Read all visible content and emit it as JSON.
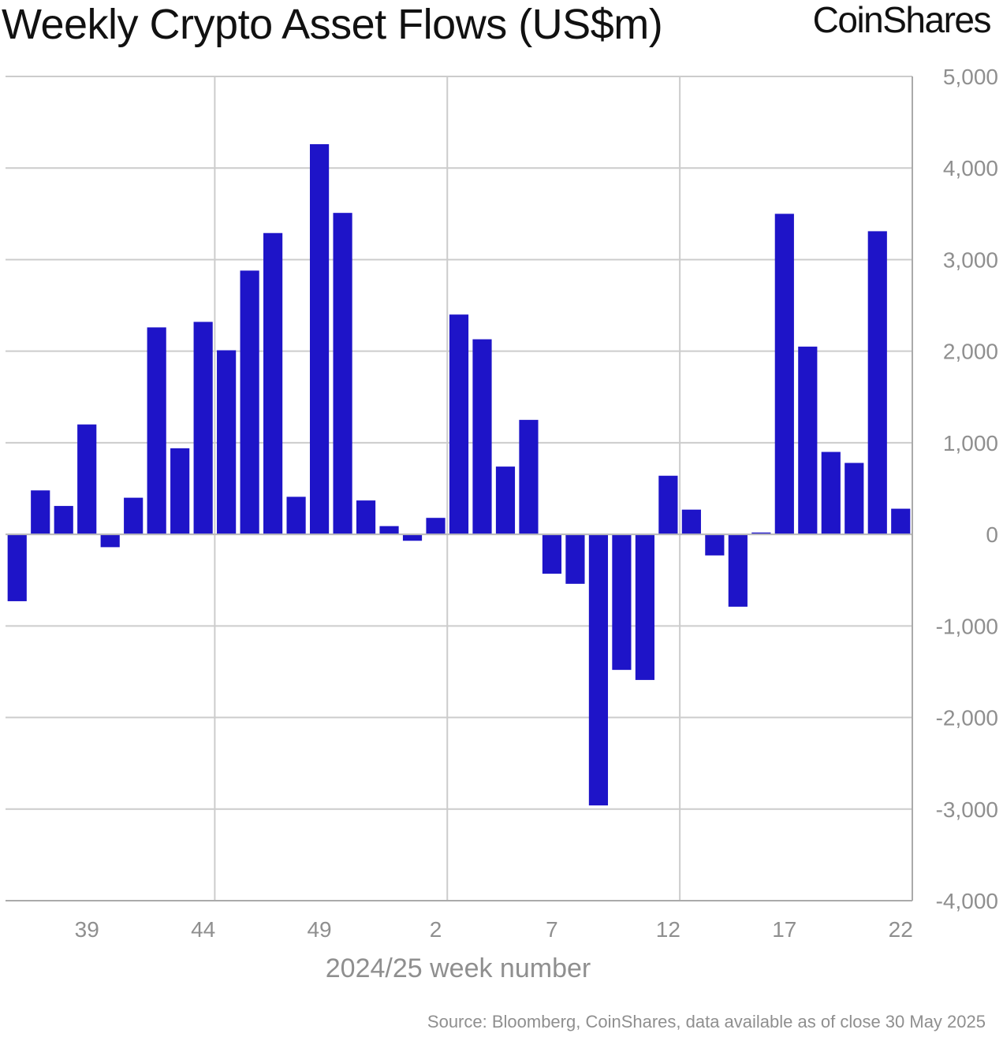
{
  "header": {
    "title": "Weekly Crypto Asset Flows (US$m)",
    "brand": "CoinShares"
  },
  "footer": {
    "source": "Source: Bloomberg, CoinShares, data available as of close 30 May 2025"
  },
  "chart_data": {
    "type": "bar",
    "xlabel": "2024/25 week number",
    "ylabel": "",
    "ylim": [
      -4000,
      5000
    ],
    "y_ticks": [
      "5,000",
      "4,000",
      "3,000",
      "2,000",
      "1,000",
      "0",
      "-1,000",
      "-2,000",
      "-3,000",
      "-4,000"
    ],
    "y_tick_values": [
      5000,
      4000,
      3000,
      2000,
      1000,
      0,
      -1000,
      -2000,
      -3000,
      -4000
    ],
    "x_tick_labels": [
      "39",
      "44",
      "49",
      "2",
      "7",
      "12",
      "17",
      "22"
    ],
    "grid": true,
    "y_axis_position": "right",
    "bar_color": "#1e14c8",
    "categories": [
      "36",
      "37",
      "38",
      "39",
      "40",
      "41",
      "42",
      "43",
      "44",
      "45",
      "46",
      "47",
      "48",
      "49",
      "50",
      "51",
      "52",
      "1",
      "2",
      "3",
      "4",
      "5",
      "6",
      "7",
      "8",
      "9",
      "10",
      "11",
      "12",
      "13",
      "14",
      "15",
      "16",
      "17",
      "18",
      "19",
      "20",
      "21",
      "22"
    ],
    "values": [
      -730,
      480,
      310,
      1200,
      -140,
      400,
      2260,
      940,
      2320,
      2010,
      2880,
      3290,
      410,
      4260,
      3510,
      370,
      90,
      -70,
      180,
      2400,
      2130,
      740,
      1250,
      -430,
      -540,
      -2960,
      -1480,
      -1590,
      640,
      270,
      -230,
      -790,
      20,
      3500,
      2050,
      900,
      780,
      3310,
      280
    ]
  }
}
